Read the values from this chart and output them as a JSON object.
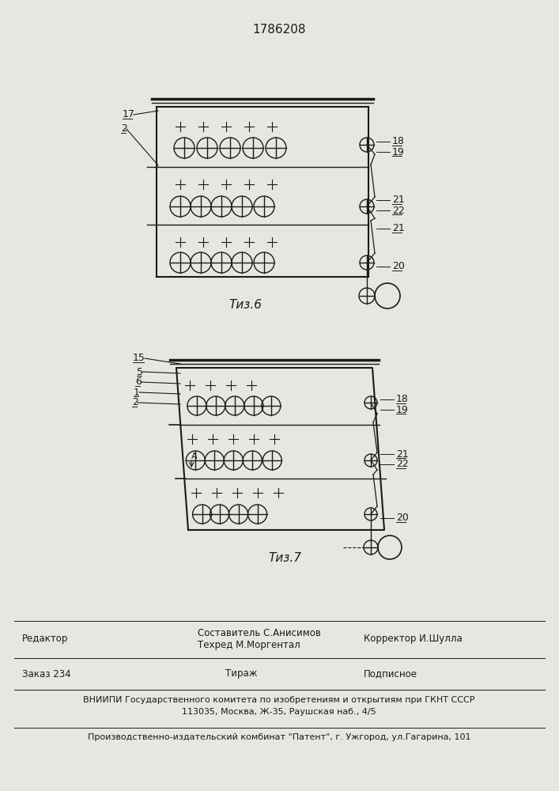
{
  "patent_number": "1786208",
  "fig6_label": "Τиз.6",
  "fig7_label": "Τиз.7",
  "bg_color": "#e8e6e0",
  "line_color": "#1a1a1a",
  "editor_line": "Редактор",
  "author_line1": "Составитель С.Анисимов",
  "author_line2": "Техред М.Моргентал",
  "corrector_line": "Корректор И.Шулла",
  "order_line": "Заказ 234",
  "edition_line": "Тираж",
  "subscription_line": "Подписное",
  "vnipi_line1": "ВНИИПИ Государственного комитета по изобретениям и открытиям при ГКНТ СССР",
  "vnipi_line2": "113035, Москва, Ж-35, Раушская наб., 4/5",
  "factory_line": "Производственно-издательский комбинат \"Патент\", г. Ужгород, ул.Гагарина, 101"
}
